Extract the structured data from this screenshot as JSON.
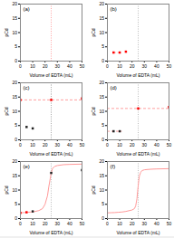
{
  "chart_data": [
    {
      "type": "scatter",
      "annotations": [
        "(a)"
      ],
      "xlabel": "Volume of EDTA (mL)",
      "ylabel": "pCd",
      "xlim": [
        0,
        50
      ],
      "ylim": [
        0,
        20
      ],
      "xticks": [
        0,
        10,
        20,
        30,
        40,
        50
      ],
      "yticks": [
        0,
        5,
        10,
        15,
        20
      ],
      "grid": false,
      "vlines": [
        {
          "x": 25,
          "color": "#FF8888",
          "line_style": "dotted"
        }
      ],
      "hlines": [],
      "series": []
    },
    {
      "type": "scatter",
      "annotations": [
        "(b)"
      ],
      "xlabel": "Volume of EDTA (mL)",
      "ylabel": "pCd",
      "xlim": [
        0,
        50
      ],
      "ylim": [
        0,
        20
      ],
      "xticks": [
        0,
        10,
        20,
        30,
        40,
        50
      ],
      "yticks": [
        0,
        5,
        10,
        15,
        20
      ],
      "grid": false,
      "vlines": [
        {
          "x": 25,
          "color": "#AAAAAA",
          "line_style": "dotted"
        }
      ],
      "hlines": [
        {
          "y": 3.0,
          "x0": 5,
          "x1": 10,
          "color": "#FF8888",
          "line_style": "dashed"
        },
        {
          "y": 3.0,
          "x0": 5,
          "x1": 5,
          "color": "#FF8888",
          "line_style": "dashed"
        },
        {
          "y": 3.3,
          "x0": 15,
          "x1": 15,
          "color": "#FF8888",
          "line_style": "dashed"
        }
      ],
      "series": [
        {
          "type": "scatter",
          "marker": "square",
          "x": [
            5,
            10,
            15
          ],
          "values": [
            3.0,
            3.0,
            3.3
          ],
          "colors": [
            "#FF0000",
            "#FF0000",
            "#FF0000"
          ]
        }
      ]
    },
    {
      "type": "scatter",
      "annotations": [
        "(c)"
      ],
      "xlabel": "Volume of EDTA (mL)",
      "ylabel": "pCd",
      "xlim": [
        0,
        50
      ],
      "ylim": [
        0,
        20
      ],
      "xticks": [
        0,
        10,
        20,
        30,
        40,
        50
      ],
      "yticks": [
        0,
        5,
        10,
        15,
        20
      ],
      "grid": false,
      "vlines": [
        {
          "x": 25,
          "color": "#AAAAAA",
          "line_style": "dotted"
        },
        {
          "x": 25,
          "color": "#AAAAAA",
          "line_style": "dotted"
        }
      ],
      "hlines": [
        {
          "y": 14.0,
          "x0": 0,
          "x1": 50,
          "color": "#FF8888",
          "line_style": "dashed"
        },
        {
          "y": 14.0,
          "x0": 0,
          "x1": 0,
          "color": "#FF8888",
          "line_style": "dashed"
        },
        {
          "y": 14.5,
          "x0": 50,
          "x1": 50,
          "color": "#FF8888",
          "line_style": "dashed"
        }
      ],
      "series": [
        {
          "type": "scatter",
          "marker": "square",
          "x": [
            5,
            10,
            0,
            25,
            50
          ],
          "values": [
            4.5,
            4.0,
            14.0,
            14.0,
            14.5
          ],
          "colors": [
            "#222222",
            "#222222",
            "#FF0000",
            "#FF0000",
            "#FF0000"
          ]
        }
      ]
    },
    {
      "type": "scatter",
      "annotations": [
        "(d)"
      ],
      "xlabel": "Volume of EDTA (mL)",
      "ylabel": "pCd",
      "xlim": [
        0,
        50
      ],
      "ylim": [
        0,
        20
      ],
      "xticks": [
        0,
        10,
        20,
        30,
        40,
        50
      ],
      "yticks": [
        0,
        5,
        10,
        15,
        20
      ],
      "grid": false,
      "vlines": [
        {
          "x": 25,
          "color": "#AAAAAA",
          "line_style": "dotted"
        }
      ],
      "hlines": [
        {
          "y": 11.0,
          "x0": 0,
          "x1": 50,
          "color": "#FF8888",
          "line_style": "dashed"
        },
        {
          "y": 3.0,
          "x0": 0,
          "x1": 12,
          "color": "#FF8888",
          "line_style": "dashed"
        }
      ],
      "series": [
        {
          "type": "scatter",
          "marker": "square",
          "x": [
            5,
            10,
            25,
            50
          ],
          "values": [
            3.0,
            3.0,
            11.0,
            11.5
          ],
          "colors": [
            "#222222",
            "#222222",
            "#FF0000",
            "#FF0000"
          ]
        }
      ]
    },
    {
      "type": "scatter",
      "annotations": [
        "(e)"
      ],
      "xlabel": "Volume of EDTA (mL)",
      "ylabel": "pCd",
      "xlim": [
        0,
        50
      ],
      "ylim": [
        0,
        20
      ],
      "xticks": [
        0,
        10,
        20,
        30,
        40,
        50
      ],
      "yticks": [
        0,
        5,
        10,
        15,
        20
      ],
      "grid": false,
      "vlines": [
        {
          "x": 25,
          "color": "#AAAAAA",
          "line_style": "dotted"
        }
      ],
      "hlines": [],
      "series": [
        {
          "type": "line",
          "color": "#FF9999",
          "x": [
            0,
            3,
            6,
            9,
            12,
            15,
            18,
            20,
            22,
            23,
            24,
            25,
            26,
            27,
            28,
            30,
            35,
            40,
            50
          ],
          "values": [
            2.0,
            2.1,
            2.2,
            2.3,
            2.5,
            2.8,
            3.5,
            5.0,
            8.0,
            11.0,
            13.5,
            16.0,
            17.5,
            18.0,
            18.3,
            18.6,
            18.9,
            19.0,
            19.1
          ]
        },
        {
          "type": "scatter",
          "marker": "square",
          "x": [
            0,
            5,
            10,
            25,
            50
          ],
          "values": [
            2.0,
            2.2,
            2.5,
            16.0,
            17.0
          ],
          "colors": [
            "#FF0000",
            "#FF0000",
            "#222222",
            "#222222",
            "#222222"
          ]
        }
      ]
    },
    {
      "type": "line",
      "annotations": [
        "(f)"
      ],
      "xlabel": "Volume of EDTA (mL)",
      "ylabel": "pCd",
      "xlim": [
        0,
        50
      ],
      "ylim": [
        0,
        20
      ],
      "xticks": [
        0,
        10,
        20,
        30,
        40,
        50
      ],
      "yticks": [
        0,
        5,
        10,
        15,
        20
      ],
      "grid": false,
      "vlines": [
        {
          "x": 25,
          "color": "#AAAAAA",
          "line_style": "dotted"
        }
      ],
      "hlines": [],
      "series": [
        {
          "type": "line",
          "color": "#FF9999",
          "x": [
            0,
            3,
            6,
            9,
            12,
            15,
            18,
            20,
            22,
            23,
            24,
            24.5,
            25,
            25.5,
            26,
            27,
            28,
            30,
            35,
            40,
            50
          ],
          "values": [
            2.0,
            2.05,
            2.1,
            2.2,
            2.3,
            2.5,
            2.8,
            3.0,
            3.5,
            4.5,
            7.0,
            9.5,
            11.5,
            13.5,
            15.0,
            16.2,
            16.8,
            17.1,
            17.3,
            17.4,
            17.5
          ]
        }
      ]
    }
  ]
}
